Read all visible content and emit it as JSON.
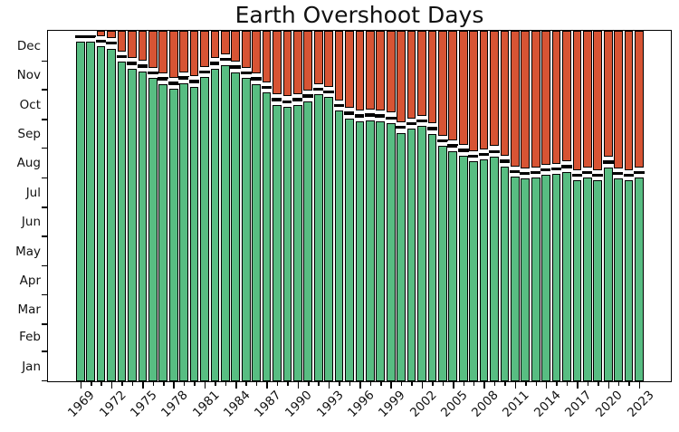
{
  "title": "Earth Overshoot Days",
  "chart_data": {
    "type": "bar",
    "stacked": true,
    "title": "Earth Overshoot Days",
    "grid": false,
    "legend": "none",
    "x": [
      1969,
      1970,
      1971,
      1972,
      1973,
      1974,
      1975,
      1976,
      1977,
      1978,
      1979,
      1980,
      1981,
      1982,
      1983,
      1984,
      1985,
      1986,
      1987,
      1988,
      1989,
      1990,
      1991,
      1992,
      1993,
      1994,
      1995,
      1996,
      1997,
      1998,
      1999,
      2000,
      2001,
      2002,
      2003,
      2004,
      2005,
      2006,
      2007,
      2008,
      2009,
      2010,
      2011,
      2012,
      2013,
      2014,
      2015,
      2016,
      2017,
      2018,
      2019,
      2020,
      2021,
      2022,
      2023
    ],
    "overshoot_day_of_year": [
      360,
      360,
      355,
      353,
      339,
      332,
      329,
      322,
      316,
      311,
      317,
      313,
      323,
      332,
      336,
      328,
      322,
      316,
      307,
      294,
      292,
      294,
      298,
      305,
      302,
      288,
      280,
      277,
      278,
      277,
      275,
      265,
      269,
      272,
      264,
      251,
      246,
      241,
      235,
      237,
      240,
      230,
      219,
      217,
      218,
      221,
      222,
      224,
      215,
      218,
      215,
      229,
      217,
      215,
      218
    ],
    "overshoot_date": [
      "Dec 26",
      "Dec 26",
      "Dec 21",
      "Dec 19",
      "Dec 5",
      "Nov 28",
      "Nov 25",
      "Nov 18",
      "Nov 12",
      "Nov 7",
      "Nov 13",
      "Nov 9",
      "Nov 19",
      "Nov 28",
      "Dec 2",
      "Nov 24",
      "Nov 18",
      "Nov 12",
      "Nov 3",
      "Oct 21",
      "Oct 19",
      "Oct 21",
      "Oct 25",
      "Nov 1",
      "Oct 29",
      "Oct 15",
      "Oct 7",
      "Oct 4",
      "Oct 5",
      "Oct 4",
      "Oct 2",
      "Sep 22",
      "Sep 26",
      "Sep 29",
      "Sep 21",
      "Sep 8",
      "Sep 3",
      "Aug 29",
      "Aug 23",
      "Aug 25",
      "Aug 28",
      "Aug 18",
      "Aug 7",
      "Aug 5",
      "Aug 6",
      "Aug 9",
      "Aug 10",
      "Aug 12",
      "Aug 3",
      "Aug 6",
      "Aug 3",
      "Aug 17",
      "Aug 5",
      "Aug 3",
      "Aug 6"
    ],
    "series": [
      {
        "name": "days-before-overshoot",
        "color": "#58bd82"
      },
      {
        "name": "days-after-overshoot",
        "color": "#d75434"
      }
    ],
    "marker": {
      "shape": "horizontal-dash",
      "color": "#000000",
      "halo_color": "#ffffff"
    },
    "y_axis": {
      "range_days": [
        0,
        365
      ],
      "tick_labels": [
        "Jan",
        "Feb",
        "Mar",
        "Apr",
        "May",
        "Jun",
        "Jul",
        "Aug",
        "Sep",
        "Oct",
        "Nov",
        "Dec"
      ],
      "ticks_at": "month starts",
      "labels_at": "month midpoints"
    },
    "x_axis": {
      "tick_labels": [
        "1969",
        "1972",
        "1975",
        "1978",
        "1981",
        "1984",
        "1987",
        "1990",
        "1993",
        "1996",
        "1999",
        "2002",
        "2005",
        "2008",
        "2011",
        "2014",
        "2017",
        "2020",
        "2023"
      ],
      "minor_ticks": "every year",
      "label_rotation_deg": 45
    },
    "colors": {
      "before_overshoot": "#58bd82",
      "after_overshoot": "#d75434",
      "bar_edge": "#000000",
      "marker": "#000000",
      "marker_halo": "#ffffff",
      "background": "#ffffff",
      "frame": "#000000"
    }
  }
}
